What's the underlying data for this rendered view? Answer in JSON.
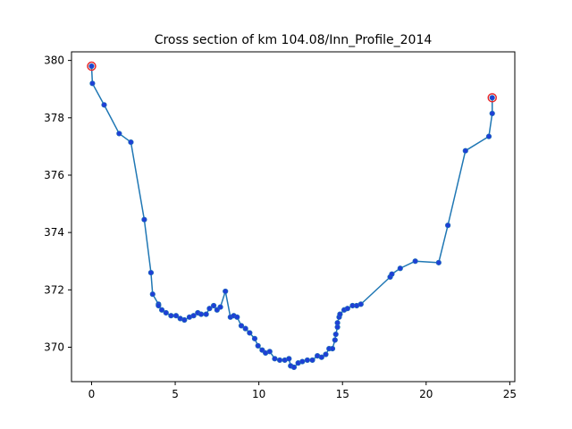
{
  "chart_data": {
    "type": "line",
    "title": "Cross section of km 104.08/Inn_Profile_2014",
    "xlabel": "",
    "ylabel": "",
    "xlim": [
      -1.2,
      25.3
    ],
    "ylim": [
      368.8,
      380.3
    ],
    "x_ticks": [
      0,
      5,
      10,
      15,
      20,
      25
    ],
    "y_ticks": [
      370,
      372,
      374,
      376,
      378,
      380
    ],
    "grid": false,
    "line_color": "#1f77b4",
    "marker_face": "#1f3fd6",
    "endpoint_edge": "#e8282b",
    "series": [
      {
        "x": [
          0.0,
          0.05,
          0.75,
          1.65,
          2.35,
          3.15,
          3.55,
          3.65,
          4.0,
          4.0,
          4.2,
          4.45,
          4.75,
          5.05,
          5.3,
          5.55,
          5.85,
          6.1,
          6.35,
          6.55,
          6.85,
          7.05,
          7.3,
          7.5,
          7.7,
          8.0,
          8.3,
          8.5,
          8.7,
          8.95,
          9.2,
          9.45,
          9.75,
          9.95,
          10.2,
          10.4,
          10.65,
          10.95,
          11.25,
          11.55,
          11.8,
          11.9,
          12.1,
          12.35,
          12.6,
          12.9,
          13.2,
          13.5,
          13.75,
          14.0,
          14.2,
          14.4,
          14.55,
          14.6,
          14.7,
          14.7,
          14.8,
          14.85,
          15.1,
          15.3,
          15.6,
          15.85,
          16.1,
          17.85,
          17.95,
          18.45,
          19.35,
          20.75,
          21.3,
          22.35,
          23.75,
          23.95,
          23.95
        ],
        "y": [
          379.8,
          379.2,
          378.45,
          377.45,
          377.15,
          374.45,
          372.6,
          371.85,
          371.5,
          371.45,
          371.3,
          371.2,
          371.1,
          371.1,
          371.0,
          370.95,
          371.05,
          371.1,
          371.2,
          371.15,
          371.15,
          371.35,
          371.45,
          371.3,
          371.4,
          371.95,
          371.05,
          371.1,
          371.05,
          370.75,
          370.65,
          370.5,
          370.3,
          370.05,
          369.9,
          369.8,
          369.85,
          369.6,
          369.55,
          369.55,
          369.6,
          369.35,
          369.3,
          369.45,
          369.5,
          369.55,
          369.55,
          369.7,
          369.65,
          369.75,
          369.95,
          369.95,
          370.25,
          370.45,
          370.7,
          370.85,
          371.05,
          371.15,
          371.3,
          371.35,
          371.45,
          371.45,
          371.5,
          372.45,
          372.55,
          372.75,
          373.0,
          372.95,
          374.25,
          376.85,
          377.35,
          378.15,
          378.7
        ]
      }
    ]
  }
}
